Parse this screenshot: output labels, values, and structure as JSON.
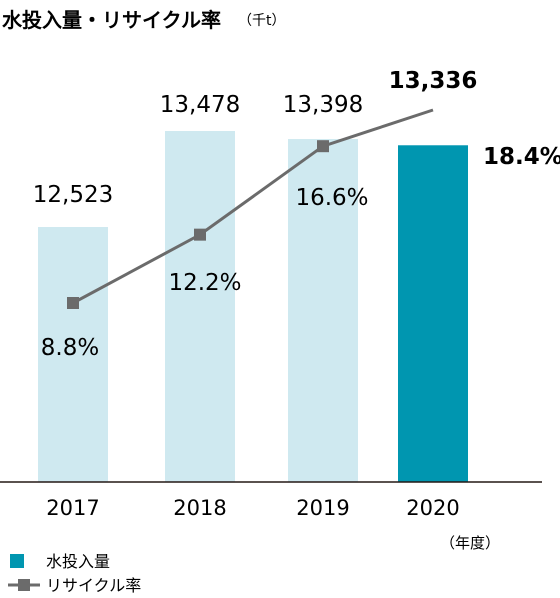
{
  "chart_data": {
    "type": "bar",
    "title": "水投入量・リサイクル率",
    "unit": "（千t）",
    "xunit": "（年度）",
    "categories": [
      "2017",
      "2018",
      "2019",
      "2020"
    ],
    "series": [
      {
        "name": "水投入量",
        "type": "bar",
        "values": [
          12523,
          13478,
          13398,
          13336
        ],
        "labels": [
          "12,523",
          "13,478",
          "13,398",
          "13,336"
        ],
        "colors": [
          "#cfe9f0",
          "#cfe9f0",
          "#cfe9f0",
          "#0096b0"
        ]
      },
      {
        "name": "リサイクル率",
        "type": "line",
        "values": [
          8.8,
          12.2,
          16.6,
          18.4
        ],
        "labels": [
          "8.8%",
          "12.2%",
          "16.6%",
          "18.4%"
        ],
        "color": "#6b6b6b"
      }
    ],
    "highlight_index": 3,
    "legend": "bottom-left"
  }
}
